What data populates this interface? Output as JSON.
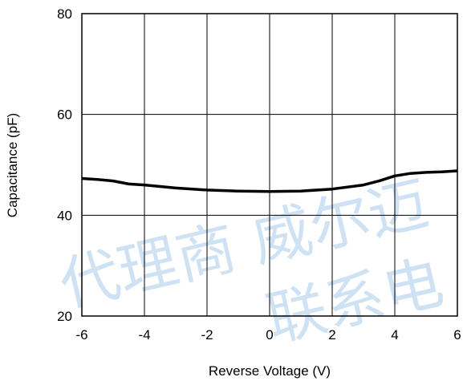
{
  "chart_data": {
    "type": "line",
    "title": "",
    "xlabel": "Reverse Voltage (V)",
    "ylabel": "Capacitance (pF)",
    "xlim": [
      -6,
      6
    ],
    "ylim": [
      20,
      80
    ],
    "x_ticks": [
      -6,
      -4,
      -2,
      0,
      2,
      4,
      6
    ],
    "y_ticks": [
      20,
      40,
      60,
      80
    ],
    "grid": true,
    "legend": "none",
    "series": [
      {
        "color": "#000000",
        "x": [
          -6,
          -5.5,
          -5,
          -4.5,
          -4,
          -3,
          -2,
          -1,
          0,
          1,
          2,
          3,
          3.5,
          4,
          4.5,
          5,
          5.5,
          6
        ],
        "y": [
          47.3,
          47.1,
          46.8,
          46.2,
          46.0,
          45.4,
          45.0,
          44.8,
          44.7,
          44.8,
          45.2,
          46.0,
          46.8,
          47.8,
          48.3,
          48.5,
          48.6,
          48.8
        ]
      }
    ]
  },
  "watermark": {
    "line1": "代理商 威尔迈",
    "line2": "联系电"
  }
}
